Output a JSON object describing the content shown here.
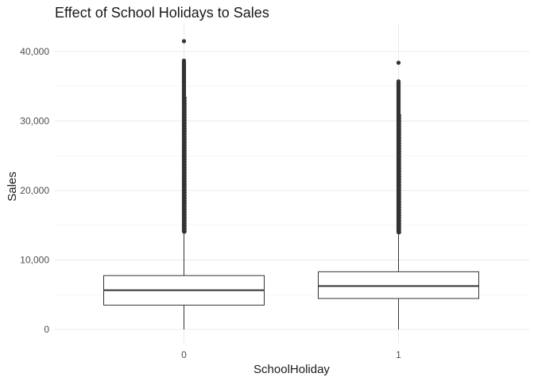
{
  "chart_data": {
    "type": "boxplot",
    "title": "Effect of School Holidays to Sales",
    "xlabel": "SchoolHoliday",
    "ylabel": "Sales",
    "categories": [
      "0",
      "1"
    ],
    "ylim": [
      0,
      43000
    ],
    "y_ticks": [
      0,
      10000,
      20000,
      30000,
      40000
    ],
    "y_tick_labels": [
      "0",
      "10,000",
      "20,000",
      "30,000",
      "40,000"
    ],
    "grid": true,
    "boxes": [
      {
        "category": "0",
        "whisker_low": 0,
        "q1": 3500,
        "median": 5650,
        "q3": 7750,
        "whisker_high": 14100,
        "outlier_band": [
          14100,
          38800
        ],
        "outliers_sparse": [
          41500
        ]
      },
      {
        "category": "1",
        "whisker_low": 0,
        "q1": 4450,
        "median": 6250,
        "q3": 8300,
        "whisker_high": 14000,
        "outlier_band": [
          14000,
          35800
        ],
        "outliers_sparse": [
          38400
        ]
      }
    ]
  }
}
